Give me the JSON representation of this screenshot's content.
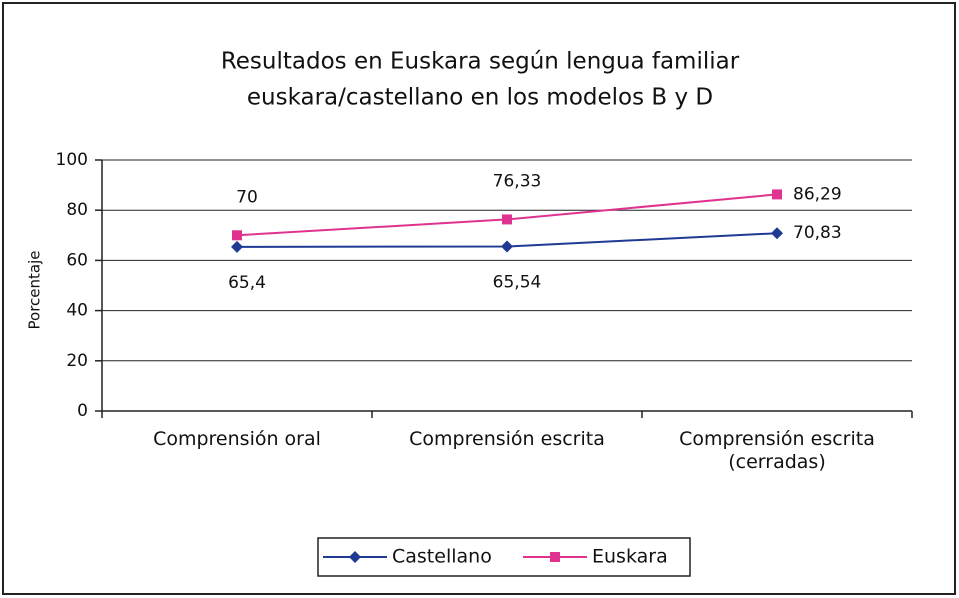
{
  "chart_data": {
    "type": "line",
    "title": [
      "Resultados en Euskara según lengua familiar",
      "euskara/castellano en los modelos B y D"
    ],
    "ylabel": "Porcentaje",
    "categories": [
      "Comprensión oral",
      "Comprensión escrita",
      "Comprensión escrita (cerradas)"
    ],
    "series": [
      {
        "name": "Castellano",
        "color": "#1f3a93",
        "marker": "diamond",
        "values": [
          65.4,
          65.54,
          70.83
        ],
        "value_labels": [
          "65,4",
          "65,54",
          "70,83"
        ]
      },
      {
        "name": "Euskara",
        "color": "#e0338f",
        "marker": "square",
        "values": [
          70,
          76.33,
          86.29
        ],
        "value_labels": [
          "70",
          "76,33",
          "86,29"
        ]
      }
    ],
    "ylim": [
      0,
      100
    ],
    "yticks": [
      0,
      20,
      40,
      60,
      80,
      100
    ],
    "grid": true,
    "legend": "bottom"
  }
}
